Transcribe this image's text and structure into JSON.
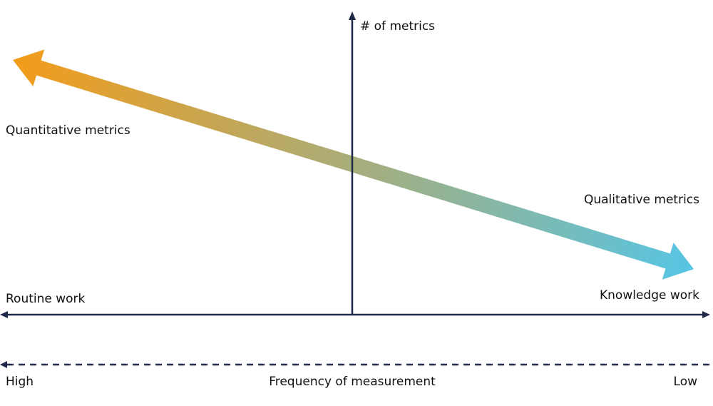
{
  "axes": {
    "y_label": "# of metrics",
    "x_left": "Routine work",
    "x_right": "Knowledge work"
  },
  "trend_arrow": {
    "start_label": "Quantitative metrics",
    "end_label": "Qualitative metrics"
  },
  "frequency": {
    "title": "Frequency of measurement",
    "left": "High",
    "right": "Low"
  }
}
